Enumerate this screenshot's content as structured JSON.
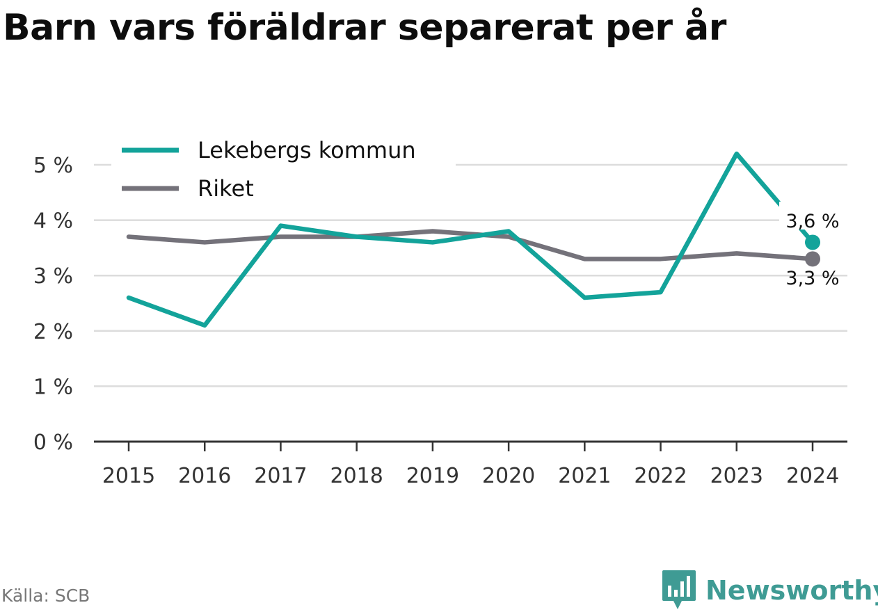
{
  "title": "Barn vars föräldrar separerat per år",
  "source": "Källa: SCB",
  "brand": {
    "name": "Newsworthy",
    "color": "#3f9b94",
    "icon": "bar-chart-bubble-icon"
  },
  "chart_data": {
    "type": "line",
    "x": [
      "2015",
      "2016",
      "2017",
      "2018",
      "2019",
      "2020",
      "2021",
      "2022",
      "2023",
      "2024"
    ],
    "yticks": [
      "0 %",
      "1 %",
      "2 %",
      "3 %",
      "4 %",
      "5 %"
    ],
    "ylim": [
      0,
      5.6
    ],
    "grid": true,
    "legend_position": "top-left",
    "series": [
      {
        "name": "Lekebergs kommun",
        "color": "#13a39a",
        "values": [
          2.6,
          2.1,
          3.9,
          3.7,
          3.6,
          3.8,
          2.6,
          2.7,
          5.2,
          3.6
        ],
        "end_label": "3,6 %"
      },
      {
        "name": "Riket",
        "color": "#74727a",
        "values": [
          3.7,
          3.6,
          3.7,
          3.7,
          3.8,
          3.7,
          3.3,
          3.3,
          3.4,
          3.3
        ],
        "end_label": "3,3 %"
      }
    ]
  }
}
